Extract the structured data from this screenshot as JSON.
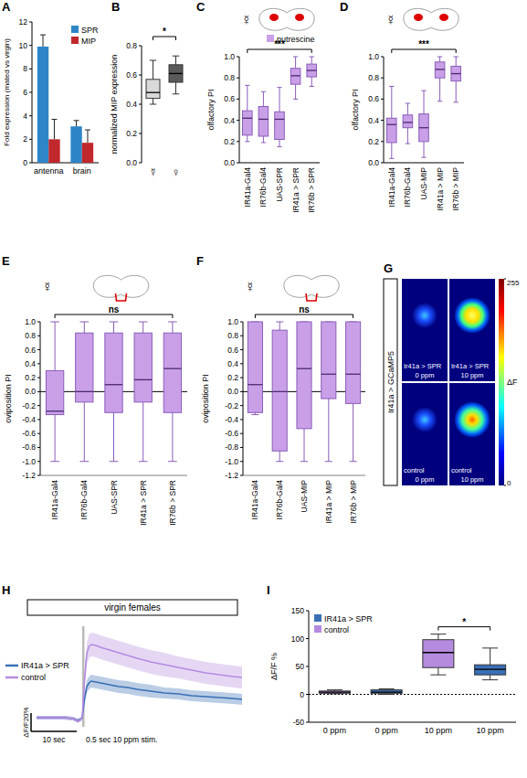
{
  "chart_data": [
    {
      "panel": "A",
      "type": "bar",
      "y_label": "Fold expression (mated vs virgin)",
      "categories": [
        "antenna",
        "brain"
      ],
      "series": [
        {
          "name": "SPR",
          "color": "#2e86c9",
          "values": [
            9.9,
            3.1
          ],
          "error": [
            1.0,
            0.5
          ]
        },
        {
          "name": "MIP",
          "color": "#c0282d",
          "values": [
            2.0,
            1.7
          ],
          "error": [
            1.7,
            1.1
          ]
        }
      ],
      "ylim": [
        0,
        12
      ],
      "yticks": [
        0,
        2,
        4,
        6,
        8,
        10,
        12
      ],
      "legend": "upper right"
    },
    {
      "panel": "B",
      "type": "box",
      "y_label": "normalized MIP expression",
      "categories": [
        "☿",
        "♀"
      ],
      "colors": [
        "#d9d9d9",
        "#5a5a5a"
      ],
      "min": [
        0.4,
        0.47
      ],
      "q1": [
        0.44,
        0.55
      ],
      "median": [
        0.48,
        0.61
      ],
      "q3": [
        0.57,
        0.67
      ],
      "max": [
        0.7,
        0.73
      ],
      "ylim": [
        0,
        0.8
      ],
      "yticks": [
        {
          "value": 0,
          "label": "0.0"
        },
        0.2,
        0.4,
        0.6,
        0.8
      ],
      "significance": "*"
    },
    {
      "panel": "C",
      "type": "box",
      "y_label": "olfactory PI",
      "symbol": "☿",
      "stimulus": {
        "name": "putrescine",
        "color": "#c9a0e8"
      },
      "categories": [
        "IR41a-Gal4",
        "IR76b-Gal4",
        "UAS-SPR",
        "IR41a > SPR",
        "IR76b > SPR"
      ],
      "colors": [
        "#c9a0e8",
        "#c9a0e8",
        "#c9a0e8",
        "#c9a0e8",
        "#c9a0e8"
      ],
      "min": [
        0.2,
        0.19,
        0.15,
        0.6,
        0.72
      ],
      "q1": [
        0.26,
        0.25,
        0.22,
        0.74,
        0.81
      ],
      "median": [
        0.42,
        0.41,
        0.41,
        0.82,
        0.87
      ],
      "q3": [
        0.49,
        0.53,
        0.48,
        0.89,
        0.93
      ],
      "max": [
        0.73,
        0.67,
        0.71,
        1.0,
        1.0
      ],
      "ylim": [
        0,
        1
      ],
      "yticks": [
        {
          "value": 0,
          "label": "0.0"
        },
        0.2,
        0.4,
        0.6,
        0.8,
        {
          "value": 1,
          "label": "1.0"
        }
      ],
      "significance": "***"
    },
    {
      "panel": "D",
      "type": "box",
      "y_label": "olfactory PI",
      "symbol": "☿",
      "categories": [
        "IR41a-Gal4",
        "IR76b-Gal4",
        "UAS-MIP",
        "IR41a > MIP",
        "IR76b > MIP"
      ],
      "colors": [
        "#c9a0e8",
        "#c9a0e8",
        "#c9a0e8",
        "#c9a0e8",
        "#c9a0e8"
      ],
      "min": [
        0.04,
        0.18,
        0.05,
        0.58,
        0.57
      ],
      "q1": [
        0.19,
        0.33,
        0.2,
        0.8,
        0.77
      ],
      "median": [
        0.36,
        0.38,
        0.33,
        0.88,
        0.84
      ],
      "q3": [
        0.42,
        0.45,
        0.46,
        0.95,
        0.91
      ],
      "max": [
        0.72,
        0.56,
        0.68,
        1.0,
        1.0
      ],
      "ylim": [
        0,
        1
      ],
      "yticks": [
        {
          "value": 0,
          "label": "0.0"
        },
        0.2,
        0.4,
        0.6,
        0.8,
        {
          "value": 1,
          "label": "1.0"
        }
      ],
      "significance": "***"
    },
    {
      "panel": "E",
      "type": "box",
      "y_label": "oviposition PI",
      "symbol": "☿",
      "categories": [
        "IR41a-Gal4",
        "IR76b-Gal4",
        "UAS-SPR",
        "IR41a > SPR",
        "IR76b > SPR"
      ],
      "colors": [
        "#c9a0e8",
        "#c9a0e8",
        "#c9a0e8",
        "#c9a0e8",
        "#c9a0e8"
      ],
      "min": [
        -1.0,
        -1.0,
        -1.0,
        -1.0,
        -1.0
      ],
      "q1": [
        -0.33,
        -0.15,
        -0.3,
        -0.15,
        -0.3
      ],
      "median": [
        -0.28,
        0.0,
        0.1,
        0.17,
        0.33
      ],
      "q3": [
        0.3,
        0.84,
        0.84,
        0.84,
        0.84
      ],
      "max": [
        1.0,
        1.0,
        1.0,
        1.0,
        1.0
      ],
      "ylim": [
        -1.2,
        1.0
      ],
      "yticks": [
        -1.2,
        {
          "value": -1,
          "label": "-1.0"
        },
        -0.8,
        -0.6,
        -0.4,
        -0.2,
        {
          "value": 0,
          "label": "0.0"
        },
        0.2,
        0.4,
        0.6,
        0.8,
        {
          "value": 1,
          "label": "1.0"
        }
      ],
      "significance": "ns"
    },
    {
      "panel": "F",
      "type": "box",
      "y_label": "oviposition PI",
      "symbol": "☿",
      "categories": [
        "IR41a-Gal4",
        "IR76b-Gal4",
        "UAS-MIP",
        "IR41a > MIP",
        "IR76b > MIP"
      ],
      "colors": [
        "#c9a0e8",
        "#c9a0e8",
        "#c9a0e8",
        "#c9a0e8",
        "#c9a0e8"
      ],
      "min": [
        -0.33,
        -1.0,
        -1.0,
        -1.0,
        -1.0
      ],
      "q1": [
        -0.3,
        -0.85,
        -0.53,
        -0.1,
        -0.17
      ],
      "median": [
        0.1,
        0.0,
        0.33,
        0.25,
        0.25
      ],
      "q3": [
        1.0,
        0.88,
        1.0,
        1.0,
        1.0
      ],
      "max": [
        1.0,
        1.0,
        1.0,
        1.0,
        1.0
      ],
      "ylim": [
        -1.2,
        1.0
      ],
      "yticks": [
        -1.2,
        {
          "value": -1,
          "label": "-1.0"
        },
        -0.8,
        -0.6,
        -0.4,
        -0.2,
        {
          "value": 0,
          "label": "0.0"
        },
        0.2,
        0.4,
        0.6,
        0.8,
        {
          "value": 1,
          "label": "1.0"
        }
      ],
      "significance": "ns"
    },
    {
      "panel": "G",
      "type": "image",
      "label": "Ir41a > GCaMP5",
      "images": [
        {
          "title": "Ir41a > SPR",
          "subtitle": "0 ppm"
        },
        {
          "title": "Ir41a > SPR",
          "subtitle": "10 ppm"
        },
        {
          "title": "control",
          "subtitle": "0 ppm"
        },
        {
          "title": "control",
          "subtitle": "10 ppm"
        }
      ],
      "colorbar": {
        "range": [
          0,
          255
        ],
        "ticks": [
          0,
          255
        ],
        "label": "ΔF"
      }
    },
    {
      "panel": "H",
      "type": "line",
      "title": "virgin females",
      "tick_labels": false,
      "legend": "left",
      "x": [
        0,
        3,
        6,
        8,
        9,
        9.5,
        10,
        10.5,
        11,
        11.5,
        12,
        13,
        14,
        16,
        18,
        20,
        22,
        25,
        28,
        31,
        34,
        37,
        40,
        43,
        45
      ],
      "series": [
        {
          "name": "IR41a > SPR",
          "color": "#3a6fb5",
          "values": [
            0,
            0,
            0,
            -1,
            -3,
            -2,
            0,
            20,
            34,
            38,
            40,
            39,
            38,
            36,
            34,
            33,
            31,
            29,
            27,
            26,
            24,
            23,
            22,
            21,
            20
          ],
          "error": [
            2,
            2,
            2,
            2,
            2,
            2,
            2,
            5,
            7,
            7,
            7,
            7,
            7,
            7,
            7,
            7,
            7,
            7,
            6,
            6,
            6,
            6,
            6,
            6,
            6
          ]
        },
        {
          "name": "control",
          "color": "#b58be0",
          "values": [
            0,
            0,
            0,
            -1,
            -4,
            -3,
            0,
            40,
            70,
            78,
            80,
            79,
            77,
            74,
            71,
            68,
            65,
            61,
            58,
            55,
            52,
            49,
            47,
            45,
            44
          ],
          "error": [
            2,
            2,
            2,
            2,
            2,
            2,
            3,
            8,
            12,
            13,
            13,
            13,
            13,
            13,
            13,
            13,
            13,
            13,
            13,
            12,
            12,
            12,
            12,
            12,
            12
          ]
        }
      ],
      "xlim": [
        0,
        45
      ],
      "ylim": [
        -10,
        100
      ],
      "y_scale_bar": {
        "value": 20,
        "label": "ΔF/F20%"
      },
      "x_scale_bar": {
        "value": 10,
        "label": "10 sec"
      },
      "stim": {
        "start": 10,
        "end": 10.5,
        "label": "0.5 sec 10 ppm stim."
      }
    },
    {
      "panel": "I",
      "type": "box",
      "y_label": "ΔF/F %",
      "legend": "upper left",
      "series": [
        {
          "name": "IR41a > SPR",
          "color": "#3a6fb5"
        },
        {
          "name": "control",
          "color": "#b58be0"
        }
      ],
      "categories": [
        "0 ppm",
        "0 ppm",
        "10 ppm",
        "10 ppm"
      ],
      "colors": [
        "#b58be0",
        "#3a6fb5",
        "#b58be0",
        "#3a6fb5"
      ],
      "min": [
        1,
        0,
        35,
        26
      ],
      "q1": [
        2,
        2,
        48,
        35
      ],
      "median": [
        4,
        4,
        75,
        45
      ],
      "q3": [
        6,
        8,
        98,
        53
      ],
      "max": [
        8,
        10,
        108,
        83
      ],
      "ylim": [
        -50,
        150
      ],
      "yticks": [
        -50,
        0,
        50,
        100,
        150
      ],
      "significance": "*"
    }
  ]
}
